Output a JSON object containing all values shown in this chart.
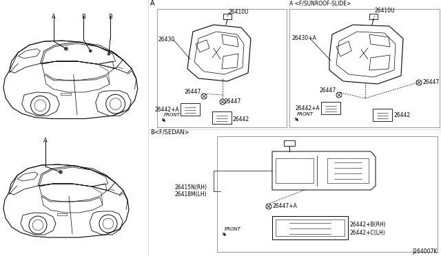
{
  "bg_color": "#ffffff",
  "diagram_code": "J264007K",
  "lc": "#000000",
  "tc": "#000000",
  "gray": "#666666",
  "light_gray": "#999999",
  "parts": {
    "A": "A",
    "B": "B",
    "26410U": "26410U",
    "26430": "26430",
    "26430A": "26430+A",
    "26447": "26447",
    "26442": "26442",
    "26442A": "26442+A",
    "26415N": "26415N(RH)",
    "26418M": "26418M(LH)",
    "26447A": "26447+A",
    "26442B": "26442+B(RH)",
    "26442C": "26442+C(LH)",
    "FRONT": "FRONT",
    "sec_A": "A",
    "sec_A_sun": "A <F/SUNROOF-SLIDE>",
    "sec_B": "B<F/SEDAN>"
  }
}
